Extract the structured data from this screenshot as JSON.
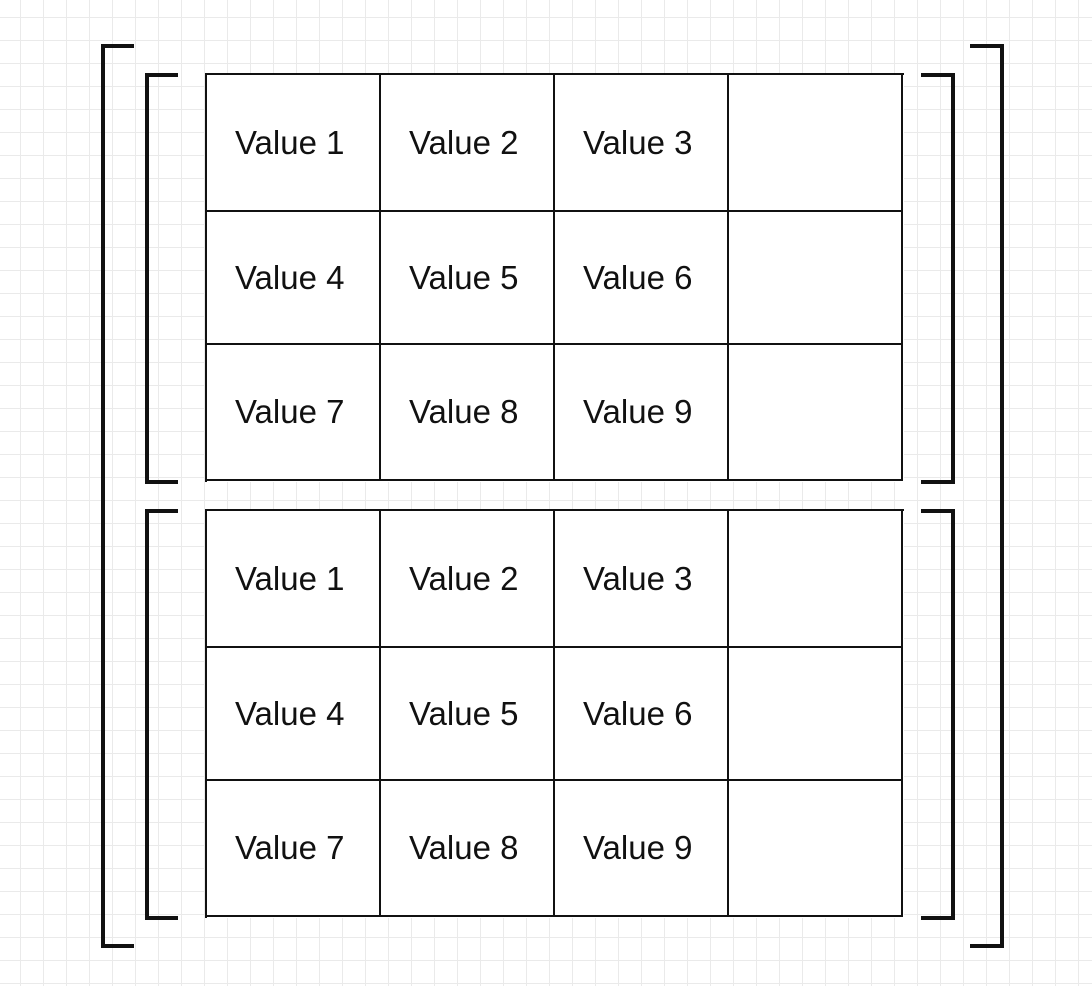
{
  "matrices": [
    {
      "rows": [
        [
          "Value 1",
          "Value 2",
          "Value 3",
          ""
        ],
        [
          "Value 4",
          "Value 5",
          "Value 6",
          ""
        ],
        [
          "Value 7",
          "Value 8",
          "Value 9",
          ""
        ]
      ]
    },
    {
      "rows": [
        [
          "Value 1",
          "Value 2",
          "Value 3",
          ""
        ],
        [
          "Value 4",
          "Value 5",
          "Value 6",
          ""
        ],
        [
          "Value 7",
          "Value 8",
          "Value 9",
          ""
        ]
      ]
    }
  ],
  "colors": {
    "line": "#111111",
    "background": "#ffffff",
    "grid": "#eaeaea"
  }
}
